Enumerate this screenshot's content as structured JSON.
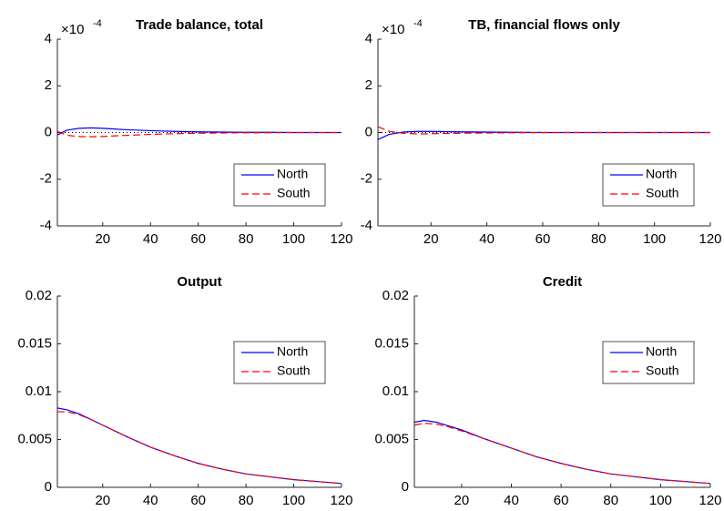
{
  "chart_data": [
    {
      "type": "line",
      "title": "Trade balance, total",
      "y_multiplier": {
        "base": "×10",
        "exponent": "-4"
      },
      "x": [
        1,
        5,
        10,
        15,
        20,
        30,
        40,
        50,
        60,
        70,
        80,
        90,
        100,
        110,
        120
      ],
      "xlim": [
        1,
        120
      ],
      "xticks": [
        20,
        40,
        60,
        80,
        100,
        120
      ],
      "ylim": [
        -4,
        4
      ],
      "yticks": [
        -4,
        -2,
        0,
        2,
        4
      ],
      "hline": 0,
      "legend_position": "southeast",
      "series": [
        {
          "name": "North",
          "color": "#0000ff",
          "linestyle": "solid",
          "values": [
            -0.1,
            0.1,
            0.18,
            0.2,
            0.18,
            0.12,
            0.08,
            0.05,
            0.03,
            0.02,
            0.01,
            0.01,
            0,
            0,
            0
          ]
        },
        {
          "name": "South",
          "color": "#ff0000",
          "linestyle": "dashed",
          "values": [
            0.05,
            -0.12,
            -0.17,
            -0.18,
            -0.17,
            -0.12,
            -0.08,
            -0.05,
            -0.03,
            -0.02,
            -0.01,
            -0.01,
            0,
            0,
            0
          ]
        }
      ]
    },
    {
      "type": "line",
      "title": "TB, financial flows only",
      "y_multiplier": {
        "base": "×10",
        "exponent": "-4"
      },
      "x": [
        1,
        5,
        10,
        15,
        20,
        30,
        40,
        50,
        60,
        70,
        80,
        90,
        100,
        110,
        120
      ],
      "xlim": [
        1,
        120
      ],
      "xticks": [
        20,
        40,
        60,
        80,
        100,
        120
      ],
      "ylim": [
        -4,
        4
      ],
      "yticks": [
        -4,
        -2,
        0,
        2,
        4
      ],
      "hline": 0,
      "legend_position": "southeast",
      "series": [
        {
          "name": "North",
          "color": "#0000ff",
          "linestyle": "solid",
          "values": [
            -0.3,
            -0.08,
            0.02,
            0.05,
            0.05,
            0.03,
            0.02,
            0.01,
            0,
            0,
            0,
            0,
            0,
            0,
            0
          ]
        },
        {
          "name": "South",
          "color": "#ff0000",
          "linestyle": "dashed",
          "values": [
            0.25,
            0.05,
            -0.03,
            -0.06,
            -0.05,
            -0.03,
            -0.02,
            -0.01,
            0,
            0,
            0,
            0,
            0,
            0,
            0
          ]
        }
      ]
    },
    {
      "type": "line",
      "title": "Output",
      "x": [
        1,
        5,
        10,
        15,
        20,
        30,
        40,
        50,
        60,
        70,
        80,
        90,
        100,
        110,
        120
      ],
      "xlim": [
        1,
        120
      ],
      "xticks": [
        20,
        40,
        60,
        80,
        100,
        120
      ],
      "ylim": [
        0,
        0.02
      ],
      "yticks": [
        0,
        0.005,
        0.01,
        0.015,
        0.02
      ],
      "legend_position": "northeast",
      "series": [
        {
          "name": "North",
          "color": "#0000ff",
          "linestyle": "solid",
          "values": [
            0.0083,
            0.0081,
            0.0077,
            0.0071,
            0.0065,
            0.0053,
            0.0042,
            0.0033,
            0.0025,
            0.0019,
            0.0014,
            0.0011,
            0.0008,
            0.0006,
            0.0004
          ]
        },
        {
          "name": "South",
          "color": "#ff0000",
          "linestyle": "dashed",
          "values": [
            0.0079,
            0.0079,
            0.0076,
            0.0071,
            0.0065,
            0.0053,
            0.0042,
            0.0033,
            0.0025,
            0.0019,
            0.0014,
            0.0011,
            0.0008,
            0.0006,
            0.0004
          ]
        }
      ]
    },
    {
      "type": "line",
      "title": "Credit",
      "x": [
        1,
        5,
        10,
        15,
        20,
        30,
        40,
        50,
        60,
        70,
        80,
        90,
        100,
        110,
        120
      ],
      "xlim": [
        1,
        120
      ],
      "xticks": [
        20,
        40,
        60,
        80,
        100,
        120
      ],
      "ylim": [
        0,
        0.02
      ],
      "yticks": [
        0,
        0.005,
        0.01,
        0.015,
        0.02
      ],
      "legend_position": "northeast",
      "series": [
        {
          "name": "North",
          "color": "#0000ff",
          "linestyle": "solid",
          "values": [
            0.0068,
            0.007,
            0.0068,
            0.0064,
            0.006,
            0.005,
            0.0041,
            0.0032,
            0.0025,
            0.0019,
            0.0014,
            0.0011,
            0.0008,
            0.0006,
            0.0004
          ]
        },
        {
          "name": "South",
          "color": "#ff0000",
          "linestyle": "dashed",
          "values": [
            0.0065,
            0.0067,
            0.0066,
            0.0063,
            0.0059,
            0.005,
            0.0041,
            0.0032,
            0.0025,
            0.0019,
            0.0014,
            0.0011,
            0.0008,
            0.0006,
            0.0004
          ]
        }
      ]
    }
  ]
}
